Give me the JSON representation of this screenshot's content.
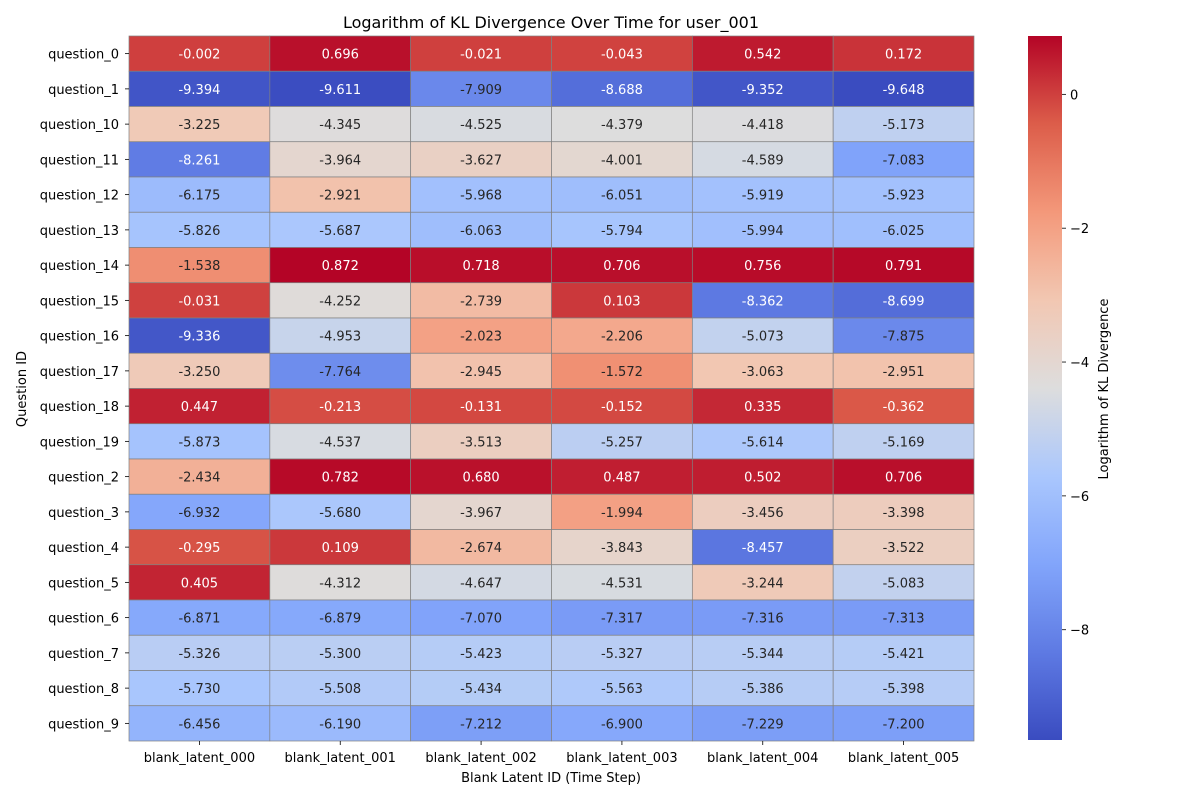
{
  "chart_data": {
    "type": "heatmap",
    "title": "Logarithm of KL Divergence Over Time for user_001",
    "xlabel": "Blank Latent ID (Time Step)",
    "ylabel": "Question ID",
    "colorbar_label": "Logarithm of KL Divergence",
    "colormap": "coolwarm",
    "color_range": [
      -9.648,
      0.872
    ],
    "colorbar_ticks": [
      0,
      -2,
      -4,
      -6,
      -8
    ],
    "x_categories": [
      "blank_latent_000",
      "blank_latent_001",
      "blank_latent_002",
      "blank_latent_003",
      "blank_latent_004",
      "blank_latent_005"
    ],
    "y_categories": [
      "question_0",
      "question_1",
      "question_10",
      "question_11",
      "question_12",
      "question_13",
      "question_14",
      "question_15",
      "question_16",
      "question_17",
      "question_18",
      "question_19",
      "question_2",
      "question_3",
      "question_4",
      "question_5",
      "question_6",
      "question_7",
      "question_8",
      "question_9"
    ],
    "values": [
      [
        -0.002,
        0.696,
        -0.021,
        -0.043,
        0.542,
        0.172
      ],
      [
        -9.394,
        -9.611,
        -7.909,
        -8.688,
        -9.352,
        -9.648
      ],
      [
        -3.225,
        -4.345,
        -4.525,
        -4.379,
        -4.418,
        -5.173
      ],
      [
        -8.261,
        -3.964,
        -3.627,
        -4.001,
        -4.589,
        -7.083
      ],
      [
        -6.175,
        -2.921,
        -5.968,
        -6.051,
        -5.919,
        -5.923
      ],
      [
        -5.826,
        -5.687,
        -6.063,
        -5.794,
        -5.994,
        -6.025
      ],
      [
        -1.538,
        0.872,
        0.718,
        0.706,
        0.756,
        0.791
      ],
      [
        -0.031,
        -4.252,
        -2.739,
        0.103,
        -8.362,
        -8.699
      ],
      [
        -9.336,
        -4.953,
        -2.023,
        -2.206,
        -5.073,
        -7.875
      ],
      [
        -3.25,
        -7.764,
        -2.945,
        -1.572,
        -3.063,
        -2.951
      ],
      [
        0.447,
        -0.213,
        -0.131,
        -0.152,
        0.335,
        -0.362
      ],
      [
        -5.873,
        -4.537,
        -3.513,
        -5.257,
        -5.614,
        -5.169
      ],
      [
        -2.434,
        0.782,
        0.68,
        0.487,
        0.502,
        0.706
      ],
      [
        -6.932,
        -5.68,
        -3.967,
        -1.994,
        -3.456,
        -3.398
      ],
      [
        -0.295,
        0.109,
        -2.674,
        -3.843,
        -8.457,
        -3.522
      ],
      [
        0.405,
        -4.312,
        -4.647,
        -4.531,
        -3.244,
        -5.083
      ],
      [
        -6.871,
        -6.879,
        -7.07,
        -7.317,
        -7.316,
        -7.313
      ],
      [
        -5.326,
        -5.3,
        -5.423,
        -5.327,
        -5.344,
        -5.421
      ],
      [
        -5.73,
        -5.508,
        -5.434,
        -5.563,
        -5.386,
        -5.398
      ],
      [
        -6.456,
        -6.19,
        -7.212,
        -6.9,
        -7.229,
        -7.2
      ]
    ]
  }
}
